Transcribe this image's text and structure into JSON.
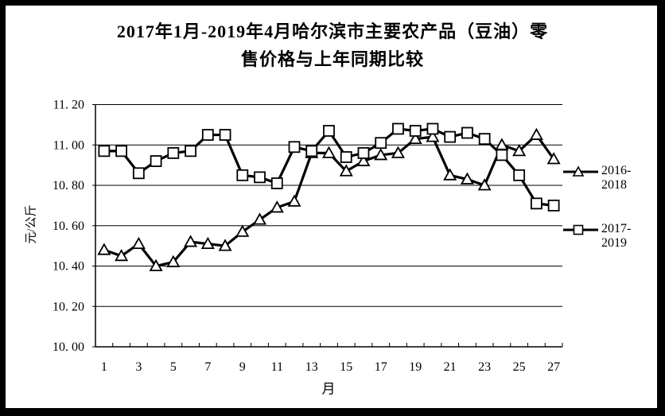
{
  "colors": {
    "background": "#ffffff",
    "border": "#000000",
    "line": "#000000",
    "marker_fill": "#ffffff",
    "text": "#000000"
  },
  "chart_data": {
    "type": "line",
    "title": "2017年1月-2019年4月哈尔滨市主要农产品（豆油）零售价格与上年同期比较",
    "title_lines": [
      "2017年1月-2019年4月哈尔滨市主要农产品（豆油）零",
      "售价格与上年同期比较"
    ],
    "xlabel": "月",
    "ylabel": "元/公斤",
    "ylim": [
      10.0,
      11.2
    ],
    "y_tick_step": 0.2,
    "y_tick_labels": [
      "10. 00",
      "10. 20",
      "10. 40",
      "10. 60",
      "10. 80",
      "11. 00",
      "11. 20"
    ],
    "x": [
      1,
      2,
      3,
      4,
      5,
      6,
      7,
      8,
      9,
      10,
      11,
      12,
      13,
      14,
      15,
      16,
      17,
      18,
      19,
      20,
      21,
      22,
      23,
      24,
      25,
      26,
      27
    ],
    "x_tick_labels": [
      "1",
      "3",
      "5",
      "7",
      "9",
      "11",
      "13",
      "15",
      "17",
      "19",
      "21",
      "23",
      "25",
      "27"
    ],
    "grid": true,
    "legend_position": "right",
    "series": [
      {
        "name": "2016-2018",
        "marker": "triangle",
        "values": [
          10.48,
          10.45,
          10.51,
          10.4,
          10.42,
          10.52,
          10.51,
          10.5,
          10.57,
          10.63,
          10.69,
          10.72,
          10.96,
          10.96,
          10.87,
          10.92,
          10.95,
          10.96,
          11.03,
          11.04,
          10.85,
          10.83,
          10.8,
          11.0,
          10.97,
          11.05,
          10.93
        ]
      },
      {
        "name": "2017-2019",
        "marker": "square",
        "values": [
          10.97,
          10.97,
          10.86,
          10.92,
          10.96,
          10.97,
          11.05,
          11.05,
          10.85,
          10.84,
          10.81,
          10.99,
          10.97,
          11.07,
          10.94,
          10.96,
          11.01,
          11.08,
          11.07,
          11.08,
          11.04,
          11.06,
          11.03,
          10.95,
          10.85,
          10.71,
          10.7
        ]
      }
    ]
  }
}
